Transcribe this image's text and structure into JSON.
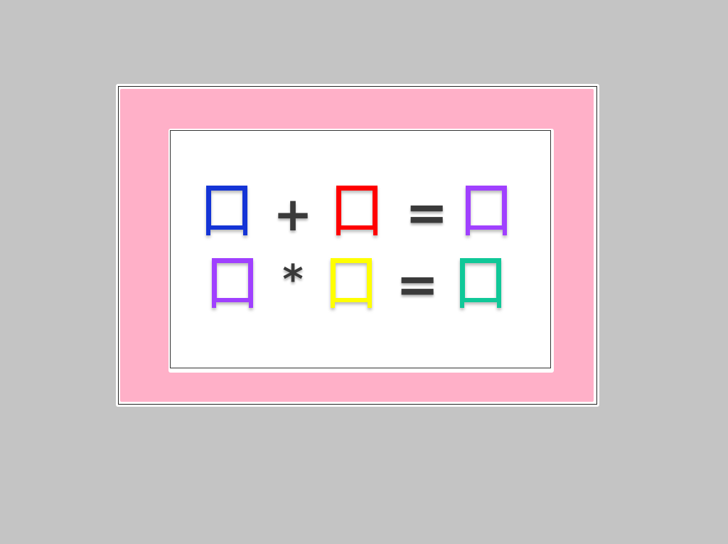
{
  "equations": [
    {
      "left_box_color": "#1434d6",
      "operator": "+",
      "right_box_color": "#ff0000",
      "equals": "=",
      "result_box_color": "#a040ff"
    },
    {
      "left_box_color": "#a040ff",
      "operator": "*",
      "right_box_color": "#ffff00",
      "equals": "=",
      "result_box_color": "#10c898"
    }
  ],
  "colors": {
    "background": "#c4c4c4",
    "mat": "#ffb0c8",
    "card": "#ffffff",
    "operator": "#3a3a3a"
  },
  "icons": {
    "box_glyph": "open-square-box-icon"
  }
}
